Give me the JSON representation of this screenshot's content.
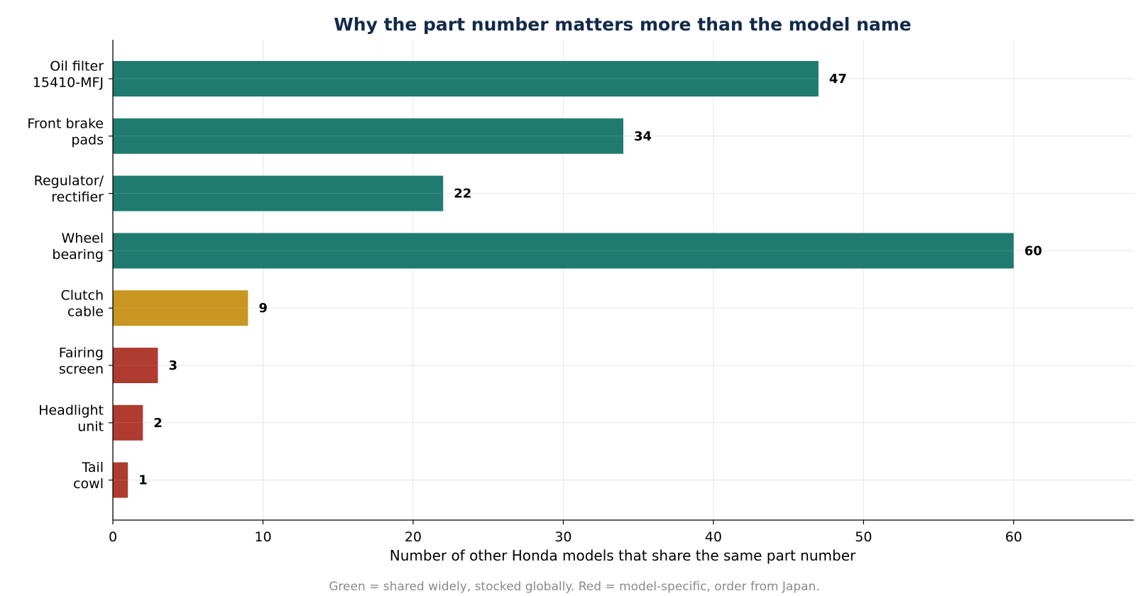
{
  "chart_data": {
    "type": "bar",
    "orientation": "horizontal",
    "title": "Why the part number matters more than the model name",
    "xlabel": "Number of other Honda models that share the same part number",
    "ylabel": "",
    "categories": [
      [
        "Oil filter",
        "15410-MFJ"
      ],
      [
        "Front brake",
        "pads"
      ],
      [
        "Regulator/",
        "rectifier"
      ],
      [
        "Wheel",
        "bearing"
      ],
      [
        "Clutch",
        "cable"
      ],
      [
        "Fairing",
        "screen"
      ],
      [
        "Headlight",
        "unit"
      ],
      [
        "Tail",
        "cowl"
      ]
    ],
    "values": [
      47,
      34,
      22,
      60,
      9,
      3,
      2,
      1
    ],
    "value_labels": [
      "47",
      "34",
      "22",
      "60",
      "9",
      "3",
      "2",
      "1"
    ],
    "bar_colors": [
      "#1f7b70",
      "#1f7b70",
      "#1f7b70",
      "#1f7b70",
      "#c89621",
      "#b03b30",
      "#b03b30",
      "#b03b30"
    ],
    "xlim": [
      0,
      68
    ],
    "xticks": [
      0,
      10,
      20,
      30,
      40,
      50,
      60
    ],
    "grid": true,
    "footnote": "Green = shared widely, stocked globally.  Red = model-specific, order from Japan."
  },
  "colors": {
    "title": "#132a4a",
    "footnote": "#8a8a8a",
    "axis": "#000000"
  }
}
